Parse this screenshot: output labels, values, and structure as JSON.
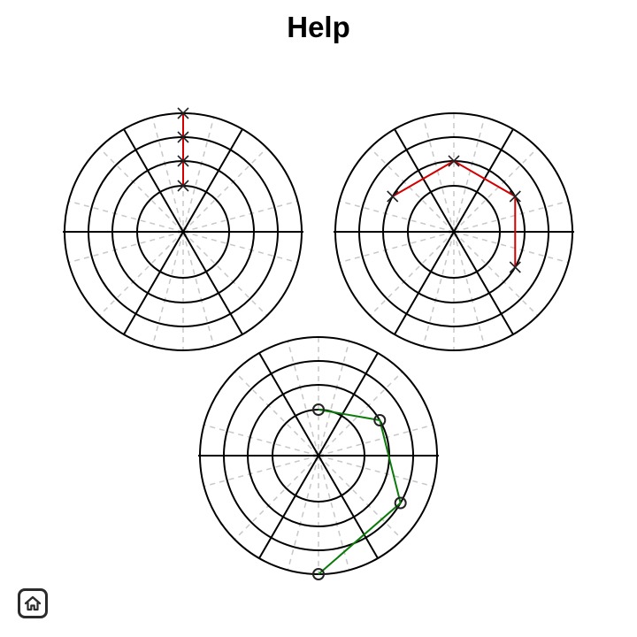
{
  "header": {
    "title": "Help"
  },
  "colors": {
    "ring": "#000000",
    "guide": "#c8c8c8",
    "path_cross": "#d40000",
    "path_circle": "#0a7a0a"
  },
  "diagrams": [
    {
      "marker": "cross",
      "path_color": "#d40000",
      "points": [
        {
          "angle": 90,
          "ring": 1
        },
        {
          "angle": 90,
          "ring": 2
        },
        {
          "angle": 90,
          "ring": 3
        },
        {
          "angle": 90,
          "ring": 4
        }
      ]
    },
    {
      "marker": "cross",
      "path_color": "#d40000",
      "points": [
        {
          "angle": 150,
          "ring": 2
        },
        {
          "angle": 90,
          "ring": 2
        },
        {
          "angle": 30,
          "ring": 2
        },
        {
          "angle": 330,
          "ring": 2
        }
      ]
    },
    {
      "marker": "circle",
      "path_color": "#0a7a0a",
      "points": [
        {
          "angle": 90,
          "ring": 1
        },
        {
          "angle": 30,
          "ring": 2
        },
        {
          "angle": 330,
          "ring": 3
        },
        {
          "angle": 270,
          "ring": 4
        }
      ]
    }
  ],
  "toolbar": {
    "home_icon": "home-icon"
  }
}
